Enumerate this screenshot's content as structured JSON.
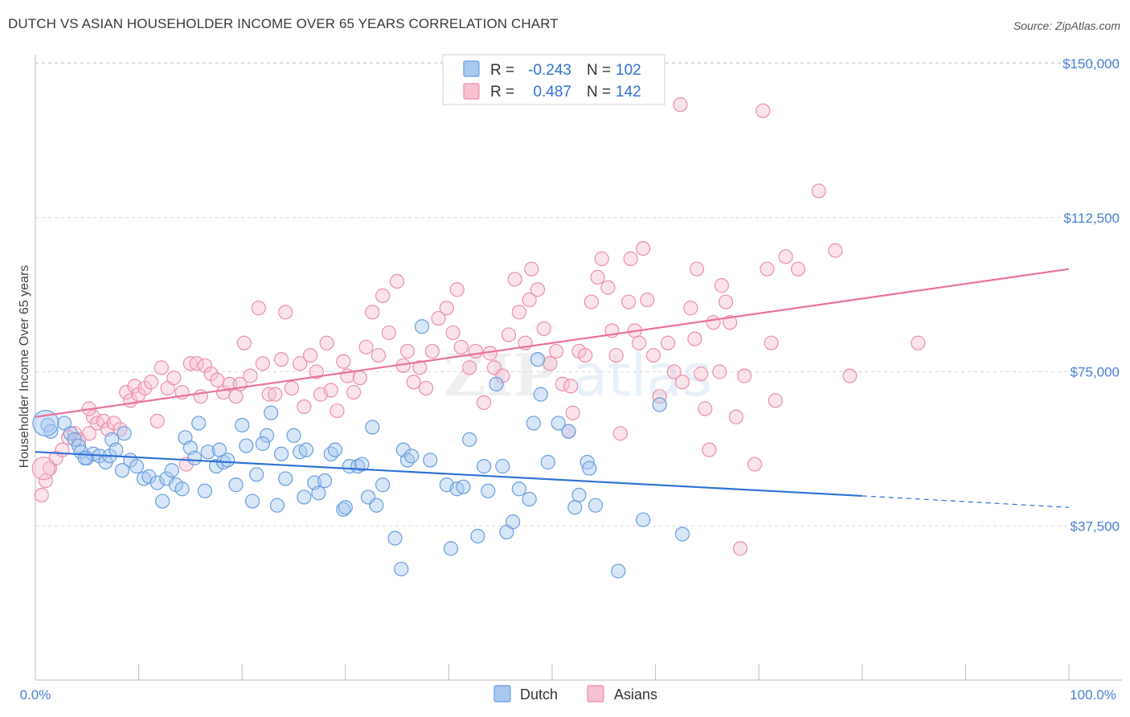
{
  "header": {
    "title": "DUTCH VS ASIAN HOUSEHOLDER INCOME OVER 65 YEARS CORRELATION CHART",
    "source": "Source: ZipAtlas.com"
  },
  "watermark": {
    "zip": "ZIP",
    "atlas": "atlas"
  },
  "legend": {
    "rows": [
      {
        "r_label": "R =",
        "r_value": "-0.243",
        "n_label": "N =",
        "n_value": "102"
      },
      {
        "r_label": "R =",
        "r_value": "0.487",
        "n_label": "N =",
        "n_value": "142"
      }
    ]
  },
  "bottom_legend": {
    "dutch": "Dutch",
    "asians": "Asians"
  },
  "colors": {
    "dutch_fill": "#a9c8ef",
    "dutch_stroke": "#6a9ee0",
    "dutch_line": "#2f72d6",
    "asian_fill": "#f6c1d0",
    "asian_stroke": "#ec8fad",
    "asian_line": "#e8739b",
    "tick_text": "#4a7fd4",
    "grid": "#d9d9d9"
  },
  "chart_data": {
    "type": "scatter",
    "title": "DUTCH VS ASIAN HOUSEHOLDER INCOME OVER 65 YEARS CORRELATION CHART",
    "xlabel": "",
    "ylabel": "Householder Income Over 65 years",
    "xlim": [
      0,
      100
    ],
    "ylim": [
      0,
      155000
    ],
    "x_tick_labels": [
      "0.0%",
      "100.0%"
    ],
    "y_ticks": [
      37500,
      75000,
      112500,
      150000
    ],
    "y_tick_labels": [
      "$37,500",
      "$75,000",
      "$112,500",
      "$150,000"
    ],
    "grid": true,
    "series": [
      {
        "name": "Dutch",
        "r": -0.243,
        "n": 102,
        "trend": {
          "x0": 0,
          "y0": 55500,
          "x1": 80,
          "y1": 44800,
          "dash_to_x": 100,
          "dash_to_y": 42000
        },
        "points": [
          [
            1.2,
            62000
          ],
          [
            2.8,
            62500
          ],
          [
            3.4,
            60000
          ],
          [
            3.8,
            58500
          ],
          [
            4.2,
            57000
          ],
          [
            4.4,
            55500
          ],
          [
            5.0,
            54000
          ],
          [
            5.6,
            55000
          ],
          [
            6.2,
            54500
          ],
          [
            6.8,
            53000
          ],
          [
            7.2,
            54500
          ],
          [
            7.4,
            58500
          ],
          [
            7.8,
            56000
          ],
          [
            8.4,
            51000
          ],
          [
            8.6,
            60000
          ],
          [
            9.2,
            53500
          ],
          [
            9.8,
            52000
          ],
          [
            10.5,
            49000
          ],
          [
            11.0,
            49500
          ],
          [
            11.8,
            48000
          ],
          [
            12.3,
            43500
          ],
          [
            12.7,
            49000
          ],
          [
            13.2,
            51000
          ],
          [
            13.6,
            47500
          ],
          [
            14.2,
            46500
          ],
          [
            14.5,
            59000
          ],
          [
            15.0,
            56500
          ],
          [
            15.4,
            54000
          ],
          [
            15.8,
            62500
          ],
          [
            16.4,
            46000
          ],
          [
            16.7,
            55500
          ],
          [
            17.5,
            52000
          ],
          [
            17.8,
            56000
          ],
          [
            18.2,
            53000
          ],
          [
            18.6,
            53500
          ],
          [
            19.4,
            47500
          ],
          [
            20.0,
            62000
          ],
          [
            20.4,
            57000
          ],
          [
            21.0,
            43500
          ],
          [
            21.4,
            50000
          ],
          [
            22.4,
            59500
          ],
          [
            22.8,
            65000
          ],
          [
            23.4,
            42500
          ],
          [
            23.8,
            55000
          ],
          [
            24.2,
            49000
          ],
          [
            25.0,
            59500
          ],
          [
            25.6,
            55500
          ],
          [
            26.2,
            56000
          ],
          [
            26.0,
            44500
          ],
          [
            27.0,
            48000
          ],
          [
            27.4,
            45500
          ],
          [
            28.0,
            48500
          ],
          [
            28.6,
            55000
          ],
          [
            29.0,
            56000
          ],
          [
            29.8,
            41500
          ],
          [
            30.4,
            52000
          ],
          [
            31.2,
            52000
          ],
          [
            31.6,
            52500
          ],
          [
            32.2,
            44500
          ],
          [
            32.6,
            61500
          ],
          [
            33.0,
            42500
          ],
          [
            33.6,
            47500
          ],
          [
            34.8,
            34500
          ],
          [
            35.4,
            27000
          ],
          [
            35.6,
            56000
          ],
          [
            36.0,
            53500
          ],
          [
            36.4,
            54500
          ],
          [
            37.4,
            86000
          ],
          [
            38.2,
            53500
          ],
          [
            39.8,
            47500
          ],
          [
            40.2,
            32000
          ],
          [
            40.8,
            46500
          ],
          [
            41.4,
            47000
          ],
          [
            42.0,
            58500
          ],
          [
            42.8,
            35000
          ],
          [
            43.4,
            52000
          ],
          [
            43.8,
            46000
          ],
          [
            44.6,
            72000
          ],
          [
            45.2,
            52000
          ],
          [
            45.6,
            36000
          ],
          [
            46.2,
            38500
          ],
          [
            46.8,
            46500
          ],
          [
            47.8,
            44000
          ],
          [
            48.2,
            62500
          ],
          [
            48.6,
            78000
          ],
          [
            48.9,
            69500
          ],
          [
            49.6,
            53000
          ],
          [
            50.6,
            62500
          ],
          [
            51.6,
            60500
          ],
          [
            52.2,
            42000
          ],
          [
            52.6,
            45000
          ],
          [
            53.4,
            53000
          ],
          [
            53.6,
            51500
          ],
          [
            54.2,
            42500
          ],
          [
            56.4,
            26500
          ],
          [
            58.8,
            39000
          ],
          [
            60.4,
            67000
          ],
          [
            62.6,
            35500
          ],
          [
            1.5,
            60500
          ],
          [
            4.8,
            54000
          ],
          [
            22.0,
            57500
          ],
          [
            30.0,
            42000
          ]
        ]
      },
      {
        "name": "Asians",
        "r": 0.487,
        "n": 142,
        "trend": {
          "x0": 0,
          "y0": 64000,
          "x1": 100,
          "y1": 100000
        },
        "points": [
          [
            0.6,
            45000
          ],
          [
            1.0,
            48500
          ],
          [
            1.4,
            51500
          ],
          [
            2.0,
            54000
          ],
          [
            2.6,
            56000
          ],
          [
            3.2,
            59000
          ],
          [
            3.8,
            60000
          ],
          [
            4.2,
            58500
          ],
          [
            5.2,
            60000
          ],
          [
            5.6,
            64000
          ],
          [
            6.0,
            62500
          ],
          [
            6.6,
            63000
          ],
          [
            7.0,
            61000
          ],
          [
            7.6,
            62500
          ],
          [
            8.2,
            61000
          ],
          [
            8.8,
            70000
          ],
          [
            9.2,
            68000
          ],
          [
            9.6,
            71500
          ],
          [
            10.0,
            69500
          ],
          [
            10.6,
            71000
          ],
          [
            11.2,
            72500
          ],
          [
            11.8,
            63000
          ],
          [
            12.2,
            76000
          ],
          [
            12.8,
            71000
          ],
          [
            13.4,
            73500
          ],
          [
            14.2,
            70000
          ],
          [
            14.6,
            52500
          ],
          [
            15.0,
            77000
          ],
          [
            15.6,
            77000
          ],
          [
            16.0,
            69000
          ],
          [
            16.4,
            76500
          ],
          [
            17.0,
            74500
          ],
          [
            17.6,
            73000
          ],
          [
            18.2,
            70000
          ],
          [
            18.8,
            72000
          ],
          [
            19.4,
            69000
          ],
          [
            19.8,
            72000
          ],
          [
            20.2,
            82000
          ],
          [
            20.8,
            74000
          ],
          [
            21.6,
            90500
          ],
          [
            22.0,
            77000
          ],
          [
            22.6,
            69500
          ],
          [
            23.2,
            69500
          ],
          [
            23.8,
            78000
          ],
          [
            24.2,
            89500
          ],
          [
            24.8,
            71000
          ],
          [
            25.6,
            77000
          ],
          [
            26.0,
            66500
          ],
          [
            26.6,
            79000
          ],
          [
            27.2,
            75000
          ],
          [
            27.6,
            69500
          ],
          [
            28.2,
            82000
          ],
          [
            28.6,
            70500
          ],
          [
            29.2,
            65500
          ],
          [
            29.8,
            77500
          ],
          [
            30.2,
            74000
          ],
          [
            30.8,
            70000
          ],
          [
            31.4,
            73500
          ],
          [
            32.0,
            81000
          ],
          [
            32.6,
            89500
          ],
          [
            33.2,
            79000
          ],
          [
            33.6,
            93500
          ],
          [
            34.2,
            84500
          ],
          [
            35.0,
            97000
          ],
          [
            35.6,
            76500
          ],
          [
            36.0,
            80000
          ],
          [
            36.6,
            72500
          ],
          [
            37.2,
            76000
          ],
          [
            37.8,
            71000
          ],
          [
            38.4,
            80000
          ],
          [
            39.0,
            88000
          ],
          [
            39.8,
            90500
          ],
          [
            40.4,
            84500
          ],
          [
            40.8,
            95000
          ],
          [
            41.2,
            81000
          ],
          [
            42.0,
            76000
          ],
          [
            42.6,
            80000
          ],
          [
            43.4,
            67500
          ],
          [
            44.0,
            79500
          ],
          [
            44.4,
            76000
          ],
          [
            45.2,
            74000
          ],
          [
            45.8,
            84000
          ],
          [
            46.4,
            97500
          ],
          [
            46.8,
            89500
          ],
          [
            47.4,
            82000
          ],
          [
            47.8,
            92500
          ],
          [
            48.0,
            100000
          ],
          [
            48.6,
            95000
          ],
          [
            49.2,
            85500
          ],
          [
            49.8,
            77000
          ],
          [
            50.4,
            80000
          ],
          [
            51.0,
            72000
          ],
          [
            51.6,
            60500
          ],
          [
            52.0,
            65000
          ],
          [
            52.6,
            80000
          ],
          [
            53.2,
            79000
          ],
          [
            53.8,
            92000
          ],
          [
            54.4,
            98000
          ],
          [
            54.8,
            102500
          ],
          [
            55.4,
            95500
          ],
          [
            55.8,
            85000
          ],
          [
            56.2,
            79000
          ],
          [
            56.6,
            60000
          ],
          [
            57.4,
            92000
          ],
          [
            57.6,
            102500
          ],
          [
            58.0,
            85000
          ],
          [
            58.4,
            82000
          ],
          [
            58.8,
            105000
          ],
          [
            59.2,
            92500
          ],
          [
            59.8,
            79000
          ],
          [
            60.4,
            69000
          ],
          [
            61.2,
            82000
          ],
          [
            61.8,
            75000
          ],
          [
            62.6,
            72500
          ],
          [
            63.4,
            90500
          ],
          [
            63.8,
            83000
          ],
          [
            64.4,
            74500
          ],
          [
            64.8,
            66000
          ],
          [
            65.2,
            56000
          ],
          [
            65.6,
            87000
          ],
          [
            66.2,
            75000
          ],
          [
            66.8,
            92000
          ],
          [
            67.2,
            87000
          ],
          [
            67.8,
            64000
          ],
          [
            68.2,
            32000
          ],
          [
            68.6,
            74000
          ],
          [
            69.6,
            52500
          ],
          [
            70.4,
            138500
          ],
          [
            70.8,
            100000
          ],
          [
            71.2,
            82000
          ],
          [
            71.6,
            68000
          ],
          [
            72.6,
            103000
          ],
          [
            75.8,
            119000
          ],
          [
            77.4,
            104500
          ],
          [
            78.8,
            74000
          ],
          [
            85.4,
            82000
          ],
          [
            62.4,
            140000
          ],
          [
            64.0,
            100000
          ],
          [
            73.8,
            100000
          ],
          [
            51.8,
            71500
          ],
          [
            66.4,
            96000
          ],
          [
            5.2,
            66000
          ]
        ]
      }
    ]
  }
}
